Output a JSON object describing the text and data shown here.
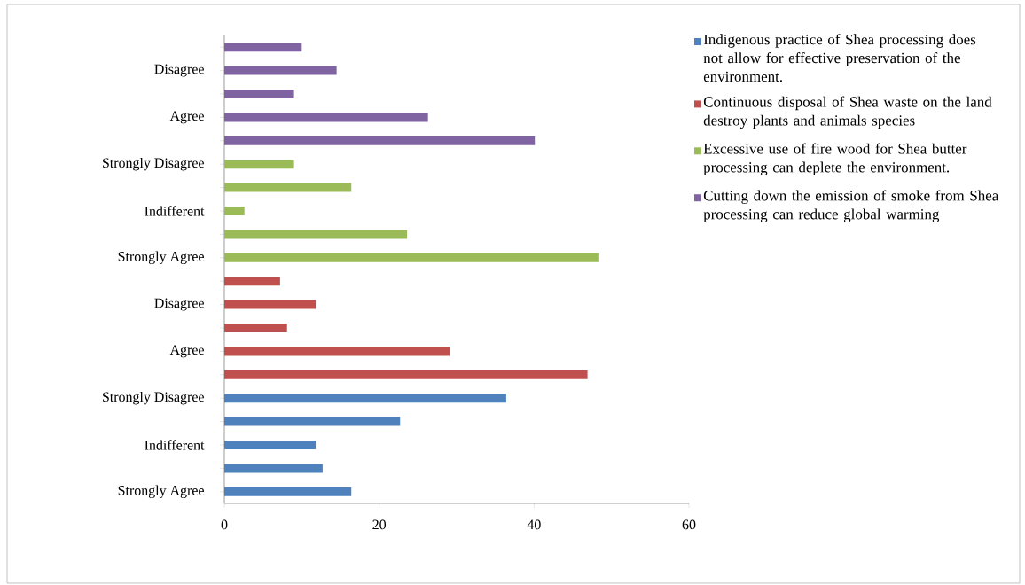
{
  "chart_data": {
    "type": "bar",
    "orientation": "horizontal",
    "categories": [
      null,
      "Disagree",
      null,
      "Agree",
      null,
      "Strongly Disagree",
      null,
      "Indifferent",
      null,
      "Strongly Agree",
      null,
      "Disagree",
      null,
      "Agree",
      null,
      "Strongly Disagree",
      null,
      "Indifferent",
      null,
      "Strongly Agree"
    ],
    "series": [
      {
        "name": "Indigenous practice of Shea processing does not allow for effective preservation of the environment.",
        "color": "#4f81bd",
        "values": [
          null,
          null,
          null,
          null,
          null,
          null,
          null,
          null,
          null,
          null,
          null,
          null,
          null,
          null,
          null,
          36.4,
          22.7,
          11.8,
          12.7,
          16.4
        ]
      },
      {
        "name": "Continuous disposal of Shea waste on the land destroy plants and animals species",
        "color": "#c0504d",
        "values": [
          null,
          null,
          null,
          null,
          null,
          null,
          null,
          null,
          null,
          null,
          7.2,
          11.8,
          8.1,
          29.1,
          46.9,
          null,
          null,
          null,
          null,
          null
        ]
      },
      {
        "name": "Excessive use of fire wood for Shea butter processing can deplete the environment.",
        "color": "#9bbb59",
        "values": [
          null,
          null,
          null,
          null,
          null,
          9.0,
          16.4,
          2.6,
          23.6,
          48.3,
          null,
          null,
          null,
          null,
          null,
          null,
          null,
          null,
          null,
          null
        ]
      },
      {
        "name": "Cutting down the emission of smoke from Shea processing can reduce global warming",
        "color": "#8064a2",
        "values": [
          10.0,
          14.5,
          9.0,
          26.3,
          40.1,
          null,
          null,
          null,
          null,
          null,
          null,
          null,
          null,
          null,
          null,
          null,
          null,
          null,
          null,
          null
        ]
      }
    ],
    "xlim": [
      0,
      60
    ],
    "xticks": [
      0,
      20,
      40,
      60
    ],
    "legend": "right"
  }
}
